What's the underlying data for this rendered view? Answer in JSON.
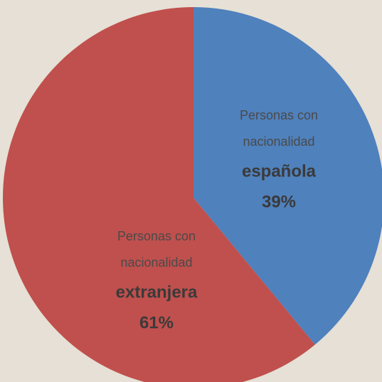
{
  "chart_data": {
    "type": "pie",
    "categories": [
      "española",
      "extranjera"
    ],
    "category_lines": [
      [
        "Personas con",
        "nacionalidad"
      ],
      [
        "Personas con",
        "nacionalidad"
      ]
    ],
    "values": [
      39,
      61
    ],
    "value_labels": [
      "39%",
      "61%"
    ],
    "colors": [
      "#4f81bd",
      "#c0504d"
    ]
  }
}
